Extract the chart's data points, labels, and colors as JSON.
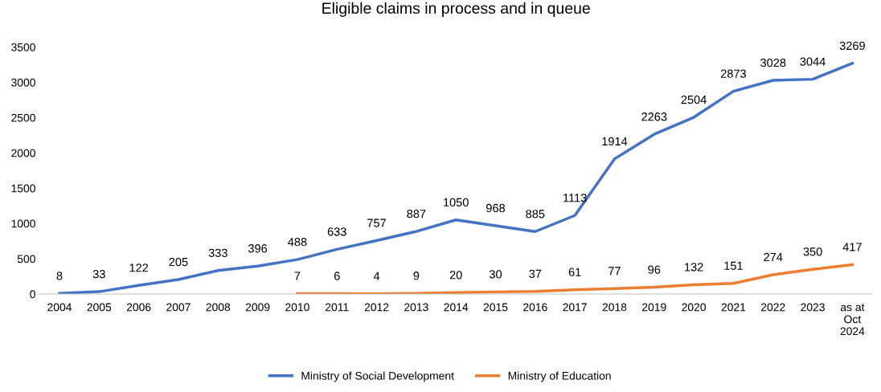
{
  "chart_data": {
    "type": "line",
    "title": "Eligible claims in process and in queue",
    "categories": [
      "2004",
      "2005",
      "2006",
      "2007",
      "2008",
      "2009",
      "2010",
      "2011",
      "2012",
      "2013",
      "2014",
      "2015",
      "2016",
      "2017",
      "2018",
      "2019",
      "2020",
      "2021",
      "2022",
      "2023",
      "as at\nOct\n2024"
    ],
    "series": [
      {
        "name": "Ministry of Social Development",
        "color": "#4472c4",
        "values": [
          8,
          33,
          122,
          205,
          333,
          396,
          488,
          633,
          757,
          887,
          1050,
          968,
          885,
          1113,
          1914,
          2263,
          2504,
          2873,
          3028,
          3044,
          3269
        ]
      },
      {
        "name": "Ministry of Education",
        "color": "#ed7d31",
        "values": [
          null,
          null,
          null,
          null,
          null,
          null,
          7,
          6,
          4,
          9,
          20,
          30,
          37,
          61,
          77,
          96,
          132,
          151,
          274,
          350,
          417
        ]
      }
    ],
    "ylim": [
      0,
      3500
    ],
    "yticks": [
      0,
      500,
      1000,
      1500,
      2000,
      2500,
      3000,
      3500
    ],
    "data_labels": true,
    "grid": false,
    "legend": "bottom",
    "marker": "none",
    "line_style": "solid"
  }
}
